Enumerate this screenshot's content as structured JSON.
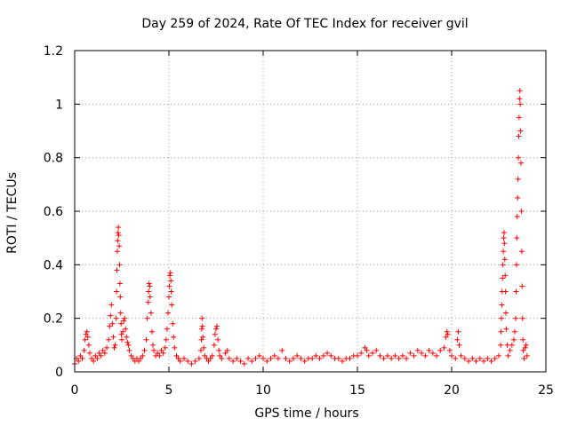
{
  "chart_data": {
    "type": "scatter",
    "title": "Day 259 of 2024, Rate Of TEC Index for receiver gvil",
    "xlabel": "GPS time / hours",
    "ylabel": "ROTI / TECUs",
    "xlim": [
      0,
      25
    ],
    "ylim": [
      0,
      1.2
    ],
    "xticks": [
      0,
      5,
      10,
      15,
      20,
      25
    ],
    "xtick_labels": [
      "0",
      "5",
      "10",
      "15",
      "20",
      "25"
    ],
    "yticks": [
      0,
      0.2,
      0.4,
      0.6,
      0.8,
      1.0,
      1.2
    ],
    "ytick_labels": [
      "0",
      "0.2",
      "0.4",
      "0.6",
      "0.8",
      "1",
      "1.2"
    ],
    "grid": true,
    "marker": "+",
    "color": "#ff0000",
    "series": [
      {
        "name": "ROTI",
        "points": [
          [
            0.0,
            0.03
          ],
          [
            0.1,
            0.05
          ],
          [
            0.2,
            0.04
          ],
          [
            0.3,
            0.06
          ],
          [
            0.4,
            0.05
          ],
          [
            0.5,
            0.08
          ],
          [
            0.55,
            0.12
          ],
          [
            0.6,
            0.14
          ],
          [
            0.65,
            0.15
          ],
          [
            0.7,
            0.13
          ],
          [
            0.75,
            0.1
          ],
          [
            0.8,
            0.07
          ],
          [
            0.9,
            0.05
          ],
          [
            1.0,
            0.04
          ],
          [
            1.1,
            0.06
          ],
          [
            1.2,
            0.05
          ],
          [
            1.3,
            0.07
          ],
          [
            1.4,
            0.06
          ],
          [
            1.5,
            0.08
          ],
          [
            1.6,
            0.07
          ],
          [
            1.7,
            0.09
          ],
          [
            1.8,
            0.12
          ],
          [
            1.85,
            0.17
          ],
          [
            1.9,
            0.21
          ],
          [
            1.95,
            0.25
          ],
          [
            2.0,
            0.18
          ],
          [
            2.05,
            0.13
          ],
          [
            2.1,
            0.09
          ],
          [
            2.15,
            0.1
          ],
          [
            2.2,
            0.2
          ],
          [
            2.22,
            0.3
          ],
          [
            2.24,
            0.38
          ],
          [
            2.26,
            0.45
          ],
          [
            2.28,
            0.49
          ],
          [
            2.3,
            0.52
          ],
          [
            2.32,
            0.54
          ],
          [
            2.34,
            0.51
          ],
          [
            2.36,
            0.47
          ],
          [
            2.38,
            0.4
          ],
          [
            2.4,
            0.33
          ],
          [
            2.42,
            0.28
          ],
          [
            2.44,
            0.22
          ],
          [
            2.46,
            0.18
          ],
          [
            2.48,
            0.14
          ],
          [
            2.5,
            0.12
          ],
          [
            2.55,
            0.15
          ],
          [
            2.6,
            0.19
          ],
          [
            2.65,
            0.2
          ],
          [
            2.7,
            0.16
          ],
          [
            2.75,
            0.13
          ],
          [
            2.8,
            0.11
          ],
          [
            2.85,
            0.1
          ],
          [
            2.9,
            0.08
          ],
          [
            3.0,
            0.06
          ],
          [
            3.1,
            0.05
          ],
          [
            3.2,
            0.04
          ],
          [
            3.3,
            0.05
          ],
          [
            3.4,
            0.04
          ],
          [
            3.5,
            0.05
          ],
          [
            3.6,
            0.06
          ],
          [
            3.7,
            0.08
          ],
          [
            3.8,
            0.12
          ],
          [
            3.85,
            0.2
          ],
          [
            3.9,
            0.26
          ],
          [
            3.92,
            0.3
          ],
          [
            3.95,
            0.33
          ],
          [
            3.98,
            0.32
          ],
          [
            4.0,
            0.28
          ],
          [
            4.05,
            0.22
          ],
          [
            4.1,
            0.15
          ],
          [
            4.15,
            0.1
          ],
          [
            4.2,
            0.08
          ],
          [
            4.3,
            0.06
          ],
          [
            4.4,
            0.07
          ],
          [
            4.5,
            0.06
          ],
          [
            4.6,
            0.08
          ],
          [
            4.7,
            0.07
          ],
          [
            4.8,
            0.09
          ],
          [
            4.85,
            0.12
          ],
          [
            4.9,
            0.16
          ],
          [
            4.95,
            0.22
          ],
          [
            5.0,
            0.28
          ],
          [
            5.02,
            0.32
          ],
          [
            5.05,
            0.36
          ],
          [
            5.08,
            0.37
          ],
          [
            5.1,
            0.34
          ],
          [
            5.12,
            0.3
          ],
          [
            5.15,
            0.25
          ],
          [
            5.2,
            0.18
          ],
          [
            5.25,
            0.13
          ],
          [
            5.3,
            0.09
          ],
          [
            5.4,
            0.06
          ],
          [
            5.5,
            0.05
          ],
          [
            5.6,
            0.04
          ],
          [
            5.8,
            0.05
          ],
          [
            6.0,
            0.04
          ],
          [
            6.2,
            0.03
          ],
          [
            6.4,
            0.04
          ],
          [
            6.6,
            0.05
          ],
          [
            6.7,
            0.08
          ],
          [
            6.72,
            0.12
          ],
          [
            6.74,
            0.16
          ],
          [
            6.76,
            0.2
          ],
          [
            6.78,
            0.17
          ],
          [
            6.8,
            0.13
          ],
          [
            6.85,
            0.09
          ],
          [
            6.9,
            0.06
          ],
          [
            7.0,
            0.05
          ],
          [
            7.1,
            0.04
          ],
          [
            7.2,
            0.05
          ],
          [
            7.3,
            0.06
          ],
          [
            7.4,
            0.1
          ],
          [
            7.45,
            0.14
          ],
          [
            7.5,
            0.16
          ],
          [
            7.55,
            0.17
          ],
          [
            7.6,
            0.12
          ],
          [
            7.65,
            0.08
          ],
          [
            7.7,
            0.06
          ],
          [
            7.8,
            0.05
          ],
          [
            8.0,
            0.07
          ],
          [
            8.1,
            0.08
          ],
          [
            8.2,
            0.05
          ],
          [
            8.4,
            0.04
          ],
          [
            8.6,
            0.05
          ],
          [
            8.8,
            0.04
          ],
          [
            9.0,
            0.03
          ],
          [
            9.2,
            0.05
          ],
          [
            9.4,
            0.04
          ],
          [
            9.6,
            0.05
          ],
          [
            9.8,
            0.06
          ],
          [
            10.0,
            0.05
          ],
          [
            10.2,
            0.04
          ],
          [
            10.4,
            0.05
          ],
          [
            10.6,
            0.06
          ],
          [
            10.8,
            0.05
          ],
          [
            11.0,
            0.08
          ],
          [
            11.2,
            0.05
          ],
          [
            11.4,
            0.04
          ],
          [
            11.6,
            0.05
          ],
          [
            11.8,
            0.06
          ],
          [
            12.0,
            0.05
          ],
          [
            12.2,
            0.04
          ],
          [
            12.4,
            0.05
          ],
          [
            12.6,
            0.05
          ],
          [
            12.8,
            0.06
          ],
          [
            13.0,
            0.05
          ],
          [
            13.2,
            0.06
          ],
          [
            13.4,
            0.07
          ],
          [
            13.6,
            0.06
          ],
          [
            13.8,
            0.05
          ],
          [
            14.0,
            0.05
          ],
          [
            14.2,
            0.04
          ],
          [
            14.4,
            0.05
          ],
          [
            14.6,
            0.05
          ],
          [
            14.8,
            0.06
          ],
          [
            15.0,
            0.06
          ],
          [
            15.2,
            0.07
          ],
          [
            15.4,
            0.09
          ],
          [
            15.5,
            0.08
          ],
          [
            15.6,
            0.06
          ],
          [
            15.8,
            0.07
          ],
          [
            16.0,
            0.08
          ],
          [
            16.2,
            0.06
          ],
          [
            16.4,
            0.05
          ],
          [
            16.6,
            0.06
          ],
          [
            16.8,
            0.05
          ],
          [
            17.0,
            0.06
          ],
          [
            17.2,
            0.05
          ],
          [
            17.4,
            0.06
          ],
          [
            17.6,
            0.05
          ],
          [
            17.8,
            0.07
          ],
          [
            18.0,
            0.06
          ],
          [
            18.2,
            0.08
          ],
          [
            18.4,
            0.07
          ],
          [
            18.6,
            0.06
          ],
          [
            18.8,
            0.08
          ],
          [
            19.0,
            0.07
          ],
          [
            19.2,
            0.06
          ],
          [
            19.4,
            0.08
          ],
          [
            19.6,
            0.09
          ],
          [
            19.7,
            0.13
          ],
          [
            19.75,
            0.15
          ],
          [
            19.8,
            0.14
          ],
          [
            19.9,
            0.08
          ],
          [
            20.0,
            0.06
          ],
          [
            20.2,
            0.05
          ],
          [
            20.3,
            0.12
          ],
          [
            20.35,
            0.15
          ],
          [
            20.4,
            0.1
          ],
          [
            20.5,
            0.06
          ],
          [
            20.7,
            0.05
          ],
          [
            20.9,
            0.04
          ],
          [
            21.1,
            0.05
          ],
          [
            21.3,
            0.04
          ],
          [
            21.5,
            0.05
          ],
          [
            21.7,
            0.04
          ],
          [
            21.9,
            0.05
          ],
          [
            22.1,
            0.04
          ],
          [
            22.3,
            0.05
          ],
          [
            22.5,
            0.06
          ],
          [
            22.6,
            0.1
          ],
          [
            22.62,
            0.15
          ],
          [
            22.64,
            0.2
          ],
          [
            22.66,
            0.25
          ],
          [
            22.68,
            0.3
          ],
          [
            22.7,
            0.35
          ],
          [
            22.72,
            0.4
          ],
          [
            22.74,
            0.45
          ],
          [
            22.76,
            0.5
          ],
          [
            22.78,
            0.52
          ],
          [
            22.8,
            0.48
          ],
          [
            22.82,
            0.42
          ],
          [
            22.84,
            0.36
          ],
          [
            22.86,
            0.3
          ],
          [
            22.88,
            0.22
          ],
          [
            22.9,
            0.16
          ],
          [
            22.95,
            0.1
          ],
          [
            23.0,
            0.06
          ],
          [
            23.1,
            0.08
          ],
          [
            23.2,
            0.1
          ],
          [
            23.3,
            0.12
          ],
          [
            23.35,
            0.15
          ],
          [
            23.4,
            0.2
          ],
          [
            23.42,
            0.3
          ],
          [
            23.44,
            0.4
          ],
          [
            23.46,
            0.5
          ],
          [
            23.48,
            0.58
          ],
          [
            23.5,
            0.65
          ],
          [
            23.52,
            0.72
          ],
          [
            23.54,
            0.8
          ],
          [
            23.56,
            0.88
          ],
          [
            23.58,
            0.95
          ],
          [
            23.6,
            1.02
          ],
          [
            23.62,
            1.05
          ],
          [
            23.64,
            1.0
          ],
          [
            23.66,
            0.9
          ],
          [
            23.68,
            0.78
          ],
          [
            23.7,
            0.6
          ],
          [
            23.72,
            0.45
          ],
          [
            23.74,
            0.32
          ],
          [
            23.76,
            0.2
          ],
          [
            23.78,
            0.12
          ],
          [
            23.8,
            0.08
          ],
          [
            23.85,
            0.05
          ],
          [
            23.9,
            0.09
          ],
          [
            23.95,
            0.1
          ],
          [
            24.0,
            0.06
          ]
        ]
      }
    ]
  }
}
